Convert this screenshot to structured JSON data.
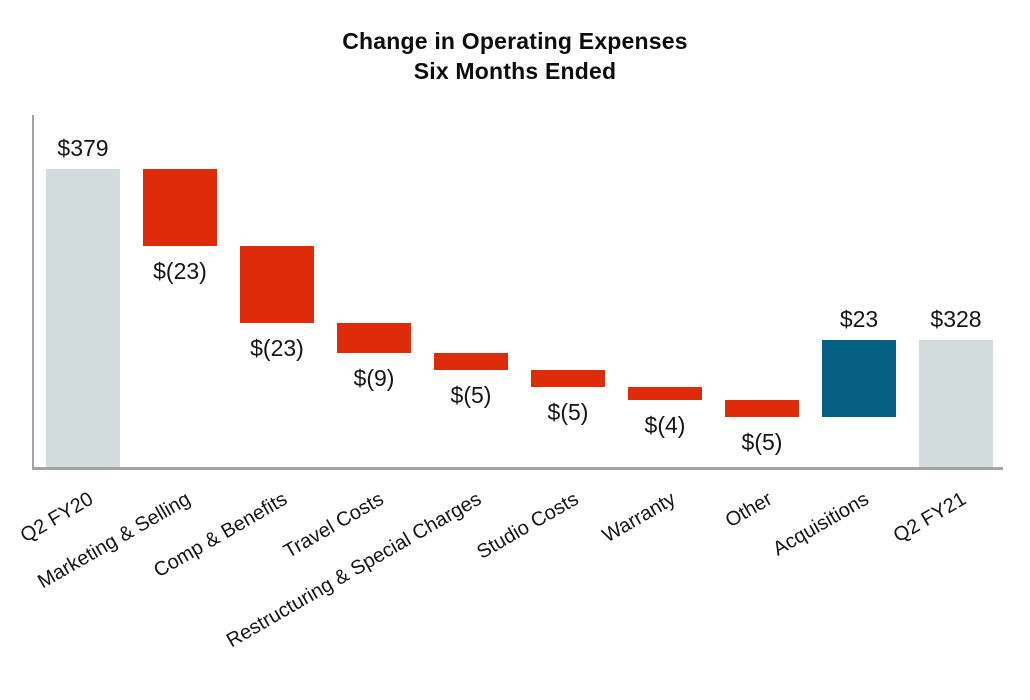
{
  "title": {
    "line1": "Change in Operating Expenses",
    "line2": "Six Months Ended"
  },
  "colors": {
    "total_bar": "#d3dcdc",
    "decrease_bar": "#de2b0a",
    "increase_bar": "#055e83",
    "axis": "#a4a4a4",
    "label_text": "#141414"
  },
  "chart_data": {
    "type": "bar",
    "subtype": "waterfall",
    "title": "Change in Operating Expenses — Six Months Ended",
    "categories": [
      "Q2 FY20",
      "Marketing & Selling",
      "Comp & Benefits",
      "Travel Costs",
      "Restructuring & Special Charges",
      "Studio Costs",
      "Warranty",
      "Other",
      "Acquisitions",
      "Q2 FY21"
    ],
    "steps": [
      {
        "category": "Q2 FY20",
        "kind": "total",
        "value": 379,
        "label": "$379"
      },
      {
        "category": "Marketing & Selling",
        "kind": "decrease",
        "value": -23,
        "label": "$(23)"
      },
      {
        "category": "Comp & Benefits",
        "kind": "decrease",
        "value": -23,
        "label": "$(23)"
      },
      {
        "category": "Travel Costs",
        "kind": "decrease",
        "value": -9,
        "label": "$(9)"
      },
      {
        "category": "Restructuring & Special Charges",
        "kind": "decrease",
        "value": -5,
        "label": "$(5)"
      },
      {
        "category": "Studio Costs",
        "kind": "decrease",
        "value": -5,
        "label": "$(5)"
      },
      {
        "category": "Warranty",
        "kind": "decrease",
        "value": -4,
        "label": "$(4)"
      },
      {
        "category": "Other",
        "kind": "decrease",
        "value": -5,
        "label": "$(5)"
      },
      {
        "category": "Acquisitions",
        "kind": "increase",
        "value": 23,
        "label": "$23"
      },
      {
        "category": "Q2 FY21",
        "kind": "total",
        "value": 328,
        "label": "$328"
      }
    ],
    "start_total": 379,
    "end_total": 328,
    "ylim": [
      290,
      400
    ],
    "grid": false,
    "legend": "none",
    "xlabel": "",
    "ylabel": ""
  }
}
